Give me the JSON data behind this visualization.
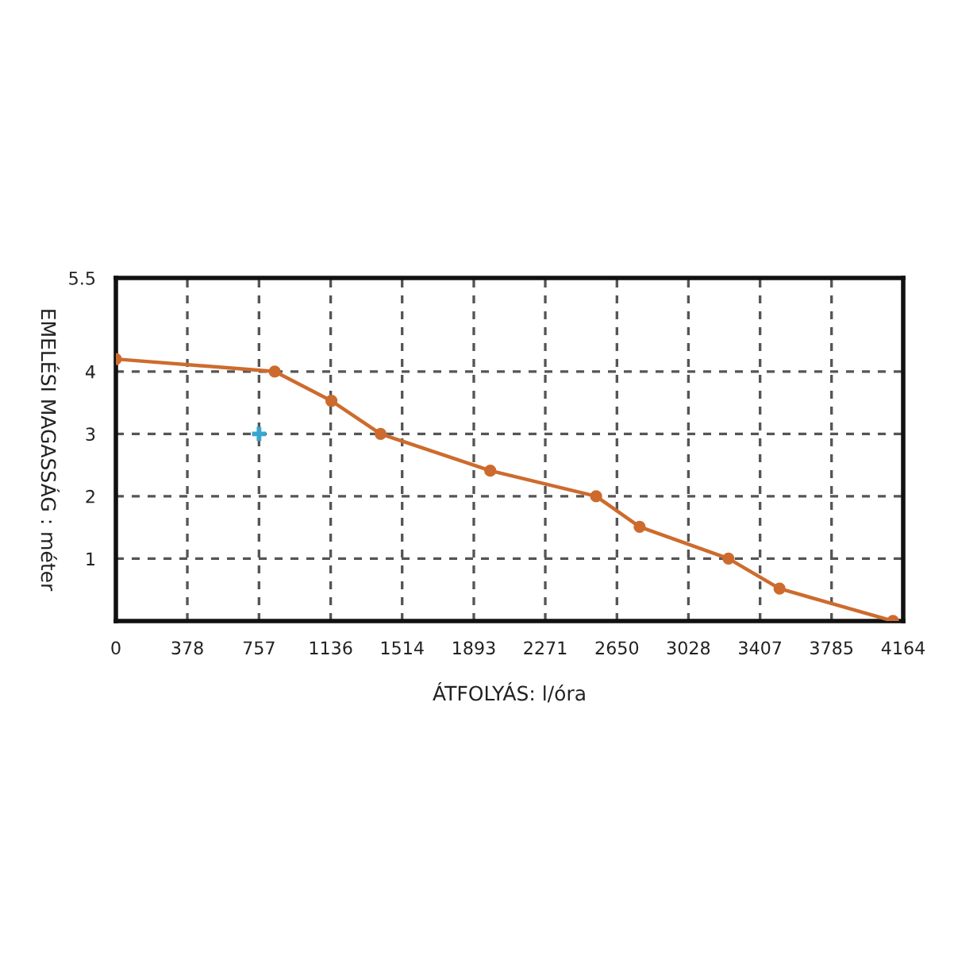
{
  "chart_data": {
    "type": "line",
    "xlabel": "ÁTFOLYÁS: l/óra",
    "ylabel": "EMELÉSI MAGASSÁG : méter",
    "xlim": [
      0,
      4164
    ],
    "xticks": [
      0,
      378,
      757,
      1136,
      1514,
      1893,
      2271,
      2650,
      3028,
      3407,
      3785,
      4164
    ],
    "ylim": [
      0,
      5.5
    ],
    "yticks": [
      1,
      2,
      3,
      4,
      5.5
    ],
    "grid": true,
    "marker": "circle",
    "line_style": "solid",
    "series": [
      {
        "color": "#cd6b2e",
        "x": [
          0,
          840,
          1140,
          1400,
          1980,
          2540,
          2770,
          3240,
          3510,
          4110
        ],
        "values": [
          4.2,
          4.0,
          3.53,
          3.0,
          2.41,
          2.0,
          1.51,
          1.0,
          0.52,
          0
        ]
      },
      {
        "type": "scatter",
        "color": "#3aa6d0",
        "marker": "cross",
        "x": [
          757
        ],
        "values": [
          3
        ]
      }
    ]
  }
}
